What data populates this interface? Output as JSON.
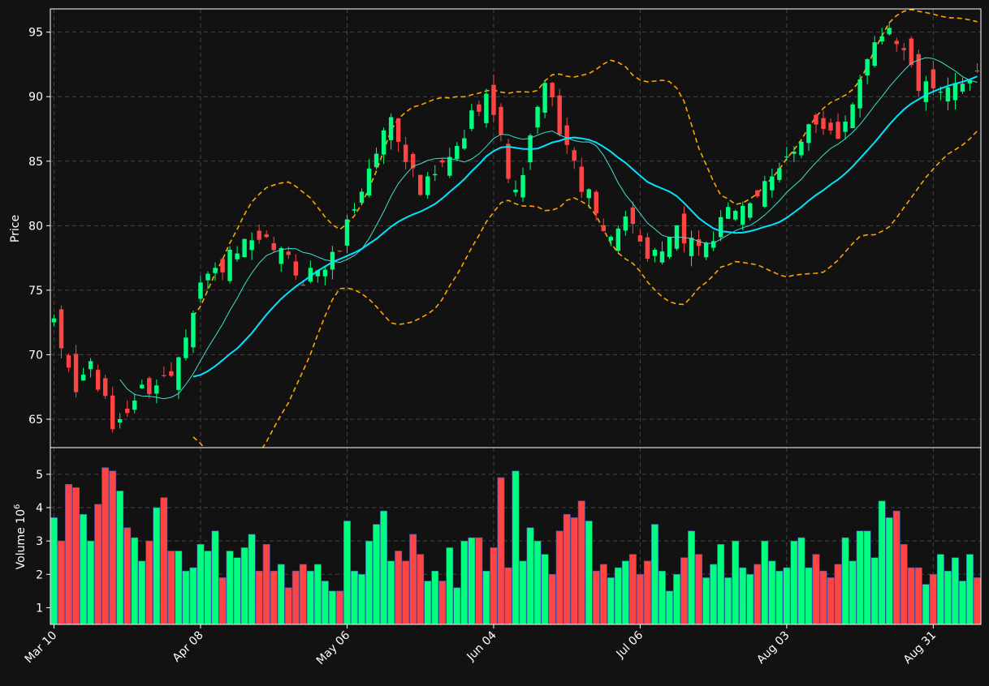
{
  "chart_data": {
    "type": "candlestick",
    "colors": {
      "background": "#121212",
      "up": "#00ff7f",
      "down": "#ff4444",
      "sma_fast": "#40e0d0",
      "sma_slow": "#00e5ff",
      "bands": "#ffa500",
      "grid": "#444444",
      "axis": "#ffffff"
    },
    "x_tick_labels": [
      "Mar 10",
      "Apr 08",
      "May 06",
      "Jun 04",
      "Jul 06",
      "Aug 03",
      "Aug 31"
    ],
    "x_tick_index": [
      0,
      20,
      40,
      60,
      80,
      100,
      120
    ],
    "n_days": 127,
    "price_panel": {
      "ylabel": "Price",
      "ylim": [
        62.8,
        96.8
      ],
      "yticks": [
        65,
        70,
        75,
        80,
        85,
        90,
        95
      ]
    },
    "volume_panel": {
      "ylabel": "Volume  10",
      "ylabel_exp": "6",
      "ylim": [
        0.5,
        5.8
      ],
      "yticks": [
        1,
        2,
        3,
        4,
        5
      ]
    },
    "ohlc_anchors": [
      [
        0,
        72.1
      ],
      [
        3,
        67.3
      ],
      [
        5,
        69.3
      ],
      [
        8,
        64.4
      ],
      [
        12,
        67.2
      ],
      [
        16,
        68.5
      ],
      [
        20,
        75.6
      ],
      [
        26,
        78.3
      ],
      [
        30,
        78.4
      ],
      [
        34,
        76.0
      ],
      [
        38,
        77.3
      ],
      [
        42,
        82.9
      ],
      [
        46,
        88.6
      ],
      [
        50,
        82.5
      ],
      [
        55,
        85.8
      ],
      [
        59,
        90.9
      ],
      [
        63,
        82.1
      ],
      [
        67,
        90.9
      ],
      [
        71,
        84.5
      ],
      [
        75,
        79.6
      ],
      [
        79,
        80.6
      ],
      [
        81,
        76.7
      ],
      [
        85,
        79.3
      ],
      [
        89,
        78.5
      ],
      [
        93,
        81.4
      ],
      [
        98,
        83.2
      ],
      [
        103,
        88.1
      ],
      [
        107,
        86.3
      ],
      [
        111,
        93.4
      ],
      [
        114,
        95.8
      ],
      [
        118,
        90.9
      ],
      [
        121,
        89.8
      ],
      [
        126,
        92.3
      ]
    ],
    "volume_pattern": [
      3.7,
      3.0,
      4.7,
      4.6,
      3.8,
      3.0,
      4.1,
      5.2,
      5.1,
      4.5,
      3.4,
      3.1,
      2.4,
      3.0,
      4.0,
      4.3,
      2.7,
      2.7,
      2.1,
      2.2,
      2.9,
      2.7,
      3.3,
      1.9,
      2.7,
      2.5,
      2.8,
      3.2,
      2.1,
      2.9,
      2.1,
      2.3,
      1.6,
      2.1,
      2.3,
      2.1,
      2.3,
      1.8,
      1.5,
      1.5,
      3.6,
      2.1,
      2.0,
      3.0,
      3.5,
      3.9,
      2.4,
      2.7,
      2.4,
      3.2,
      2.6,
      1.8,
      2.1,
      1.8,
      2.8,
      1.6,
      3.0,
      3.1,
      3.1,
      2.1,
      2.8,
      4.9,
      2.2,
      5.1,
      2.4,
      3.4,
      3.0,
      2.6,
      2.0,
      3.3,
      3.8,
      3.7,
      4.2,
      3.6,
      2.1,
      2.3,
      1.9,
      2.2,
      2.4,
      2.6,
      2.0,
      2.4,
      3.5,
      2.1,
      1.5,
      2.0,
      2.5,
      3.3,
      2.6,
      1.9,
      2.3,
      2.9,
      1.9,
      3.0,
      2.2,
      2.0,
      2.3,
      3.0,
      2.4,
      2.1,
      2.2,
      3.0,
      3.1,
      2.2,
      2.6,
      2.1,
      1.9,
      2.3,
      3.1,
      2.4,
      3.3,
      3.3,
      2.5,
      4.2,
      3.7,
      3.9,
      2.9,
      2.2,
      2.2,
      1.7,
      2.0,
      2.6,
      2.1,
      2.5,
      1.8,
      2.6,
      1.9
    ]
  }
}
